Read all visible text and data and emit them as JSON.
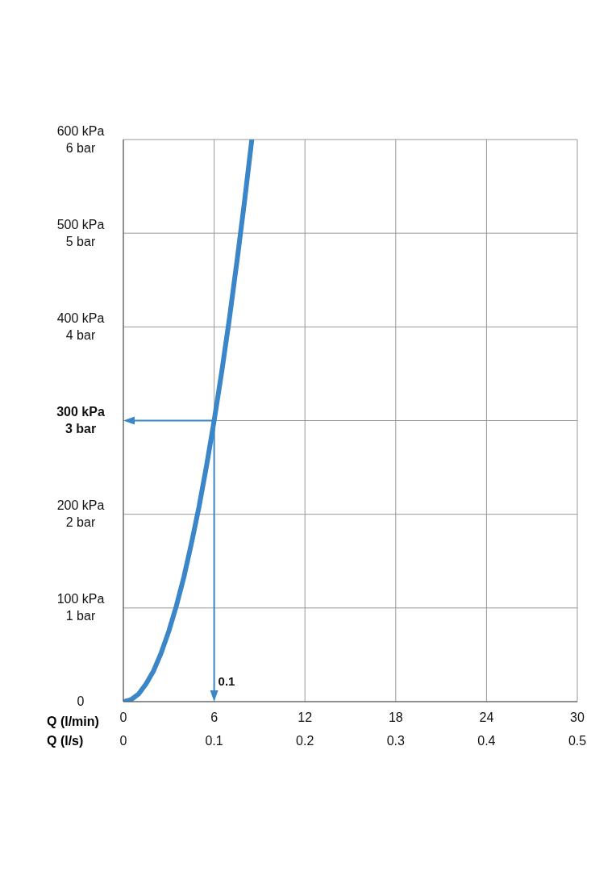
{
  "chart_data": {
    "type": "line",
    "xlabel": "Q (l/min)",
    "x2label": "Q (l/s)",
    "x": [
      0,
      0.5,
      1,
      1.5,
      2,
      2.5,
      3,
      3.5,
      4,
      4.5,
      5,
      5.5,
      6,
      6.5,
      7,
      7.5,
      8,
      8.49
    ],
    "series": [
      {
        "color": "#3a86c8",
        "values": [
          0,
          2,
          8,
          19,
          33,
          52,
          75,
          102,
          133,
          169,
          208,
          252,
          300,
          352,
          408,
          469,
          533,
          600
        ]
      }
    ],
    "xlim": [
      0,
      30
    ],
    "xticks": [
      0,
      6,
      12,
      18,
      24,
      30
    ],
    "x2lim": [
      0,
      0.5
    ],
    "x2ticks": [
      0,
      0.1,
      0.2,
      0.3,
      0.4,
      0.5
    ],
    "ylim": [
      0,
      600
    ],
    "yticks": [
      0,
      {
        "value": 100,
        "label": "100 kPa"
      },
      {
        "value": 200,
        "label": "200 kPa"
      },
      {
        "value": 300,
        "label": "300 kPa"
      },
      {
        "value": 400,
        "label": "400 kPa"
      },
      {
        "value": 500,
        "label": "500 kPa"
      },
      {
        "value": 600,
        "label": "600 kPa"
      }
    ],
    "y2lim": [
      0,
      6
    ],
    "y2ticks": [
      {
        "value": 0,
        "label": null
      },
      {
        "value": 1,
        "label": "1 bar"
      },
      {
        "value": 2,
        "label": "2 bar"
      },
      {
        "value": 3,
        "label": "3 bar"
      },
      {
        "value": 4,
        "label": "4 bar"
      },
      {
        "value": 5,
        "label": "5 bar"
      },
      {
        "value": 6,
        "label": "6 bar"
      }
    ],
    "ref_lines": [
      {
        "axis": "x2",
        "value": 0.1,
        "label": "0.1",
        "color": "#3a86c8"
      },
      {
        "axis": "y",
        "value": 300,
        "color": "#3a86c8"
      }
    ],
    "grid": true,
    "marker": "none",
    "line_style": "solid",
    "legend": false
  }
}
